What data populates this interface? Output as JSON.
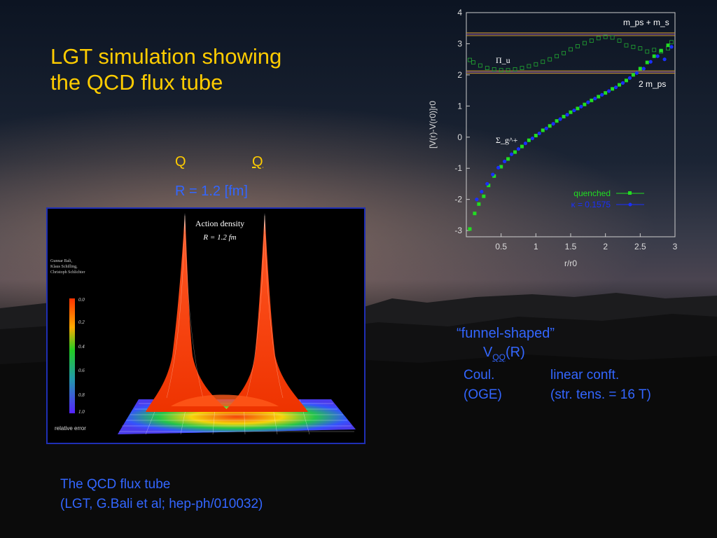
{
  "slide": {
    "title_line1": "LGT simulation showing",
    "title_line2": "the QCD flux tube",
    "q_left": "Q",
    "q_right": "Q",
    "r_label": "R = 1.2 [fm]",
    "caption_line1": "The QCD flux tube",
    "caption_line2": "(LGT, G.Bali et al; hep-ph/010032)",
    "funnel_label": "“funnel-shaped”",
    "potential_label": "V",
    "potential_sub": "QQ",
    "potential_arg": "(R)",
    "coul_line1": "Coul.",
    "coul_line2": "(OGE)",
    "linear_line1": "linear conft.",
    "linear_line2": "(str. tens. = 16 T)"
  },
  "figure": {
    "title": "Action density",
    "subtitle": "R = 1.2 fm",
    "authors": [
      "Gunnar Bali,",
      "Klaus Schilling,",
      "Christoph Schlichter"
    ],
    "scale_ticks": [
      "0.0",
      "0.2",
      "0.4",
      "0.6",
      "0.8",
      "1.0"
    ],
    "scale_label": "relative error"
  },
  "colors": {
    "title": "#ffcc00",
    "body_text": "#3366ff",
    "quenched": "#22dd22",
    "kappa": "#1a2fff",
    "box_border": "#1f2fb5"
  },
  "chart_data": {
    "type": "scatter",
    "xlabel": "r/r0",
    "ylabel": "[V(r)-V(r0)]r0",
    "xlim": [
      0.0,
      3.0
    ],
    "ylim": [
      -3.2,
      4.0
    ],
    "x_ticks": [
      "0.5",
      "1",
      "1.5",
      "2",
      "2.5",
      "3"
    ],
    "y_ticks": [
      "-3",
      "-2",
      "-1",
      "0",
      "1",
      "2",
      "3",
      "4"
    ],
    "annotations": {
      "mps_ms": "m_ps + m_s",
      "two_mps": "2 m_ps",
      "pi_u": "Π_u",
      "sigma_g": "Σ_g^+"
    },
    "thresholds": [
      {
        "name": "mps+ms",
        "values": [
          3.35,
          3.26
        ],
        "color": "#cc9933"
      },
      {
        "name": "2mps",
        "values": [
          2.13,
          2.05
        ],
        "color": "#cc9933"
      }
    ],
    "legend": [
      {
        "label": "quenched",
        "color": "#22dd22"
      },
      {
        "label": "κ = 0.1575",
        "color": "#1a2fff"
      }
    ],
    "legend_position": "bottom-right",
    "series": [
      {
        "name": "quenched",
        "values": [
          [
            0.05,
            -2.95
          ],
          [
            0.12,
            -2.45
          ],
          [
            0.18,
            -2.15
          ],
          [
            0.25,
            -1.9
          ],
          [
            0.32,
            -1.55
          ],
          [
            0.4,
            -1.25
          ],
          [
            0.5,
            -0.95
          ],
          [
            0.6,
            -0.7
          ],
          [
            0.7,
            -0.48
          ],
          [
            0.8,
            -0.3
          ],
          [
            0.9,
            -0.1
          ],
          [
            1.0,
            0.05
          ],
          [
            1.1,
            0.22
          ],
          [
            1.2,
            0.36
          ],
          [
            1.3,
            0.52
          ],
          [
            1.4,
            0.66
          ],
          [
            1.5,
            0.8
          ],
          [
            1.6,
            0.92
          ],
          [
            1.7,
            1.05
          ],
          [
            1.8,
            1.18
          ],
          [
            1.9,
            1.3
          ],
          [
            2.0,
            1.42
          ],
          [
            2.1,
            1.55
          ],
          [
            2.2,
            1.68
          ],
          [
            2.3,
            1.82
          ],
          [
            2.4,
            2.0
          ],
          [
            2.5,
            2.2
          ],
          [
            2.6,
            2.4
          ],
          [
            2.7,
            2.6
          ],
          [
            2.8,
            2.78
          ],
          [
            2.9,
            2.95
          ]
        ]
      },
      {
        "name": "κ = 0.1575",
        "values": [
          [
            0.15,
            -2.0
          ],
          [
            0.22,
            -1.75
          ],
          [
            0.3,
            -1.5
          ],
          [
            0.38,
            -1.2
          ],
          [
            0.46,
            -0.98
          ],
          [
            0.55,
            -0.78
          ],
          [
            0.65,
            -0.55
          ],
          [
            0.75,
            -0.38
          ],
          [
            0.85,
            -0.2
          ],
          [
            0.95,
            -0.04
          ],
          [
            1.05,
            0.12
          ],
          [
            1.15,
            0.28
          ],
          [
            1.25,
            0.43
          ],
          [
            1.35,
            0.58
          ],
          [
            1.45,
            0.72
          ],
          [
            1.55,
            0.86
          ],
          [
            1.65,
            0.98
          ],
          [
            1.75,
            1.12
          ],
          [
            1.85,
            1.24
          ],
          [
            1.95,
            1.36
          ],
          [
            2.05,
            1.48
          ],
          [
            2.15,
            1.6
          ],
          [
            2.25,
            1.74
          ],
          [
            2.35,
            1.9
          ],
          [
            2.45,
            2.06
          ],
          [
            2.55,
            2.2
          ],
          [
            2.65,
            2.42
          ],
          [
            2.75,
            2.6
          ],
          [
            2.85,
            2.5
          ],
          [
            2.95,
            2.9
          ]
        ]
      },
      {
        "name": "Πu",
        "values": [
          [
            0.05,
            2.48
          ],
          [
            0.1,
            2.4
          ],
          [
            0.2,
            2.3
          ],
          [
            0.3,
            2.22
          ],
          [
            0.4,
            2.18
          ],
          [
            0.5,
            2.15
          ],
          [
            0.6,
            2.15
          ],
          [
            0.7,
            2.18
          ],
          [
            0.8,
            2.22
          ],
          [
            0.9,
            2.28
          ],
          [
            1.0,
            2.34
          ],
          [
            1.1,
            2.42
          ],
          [
            1.2,
            2.5
          ],
          [
            1.3,
            2.6
          ],
          [
            1.4,
            2.7
          ],
          [
            1.5,
            2.82
          ],
          [
            1.6,
            2.92
          ],
          [
            1.7,
            3.02
          ],
          [
            1.8,
            3.1
          ],
          [
            1.9,
            3.18
          ],
          [
            2.0,
            3.22
          ],
          [
            2.1,
            3.2
          ],
          [
            2.2,
            3.1
          ],
          [
            2.3,
            2.95
          ],
          [
            2.4,
            2.9
          ],
          [
            2.5,
            2.85
          ],
          [
            2.6,
            2.75
          ],
          [
            2.7,
            2.8
          ],
          [
            2.8,
            2.75
          ],
          [
            2.9,
            2.85
          ],
          [
            2.95,
            3.05
          ]
        ]
      }
    ]
  }
}
